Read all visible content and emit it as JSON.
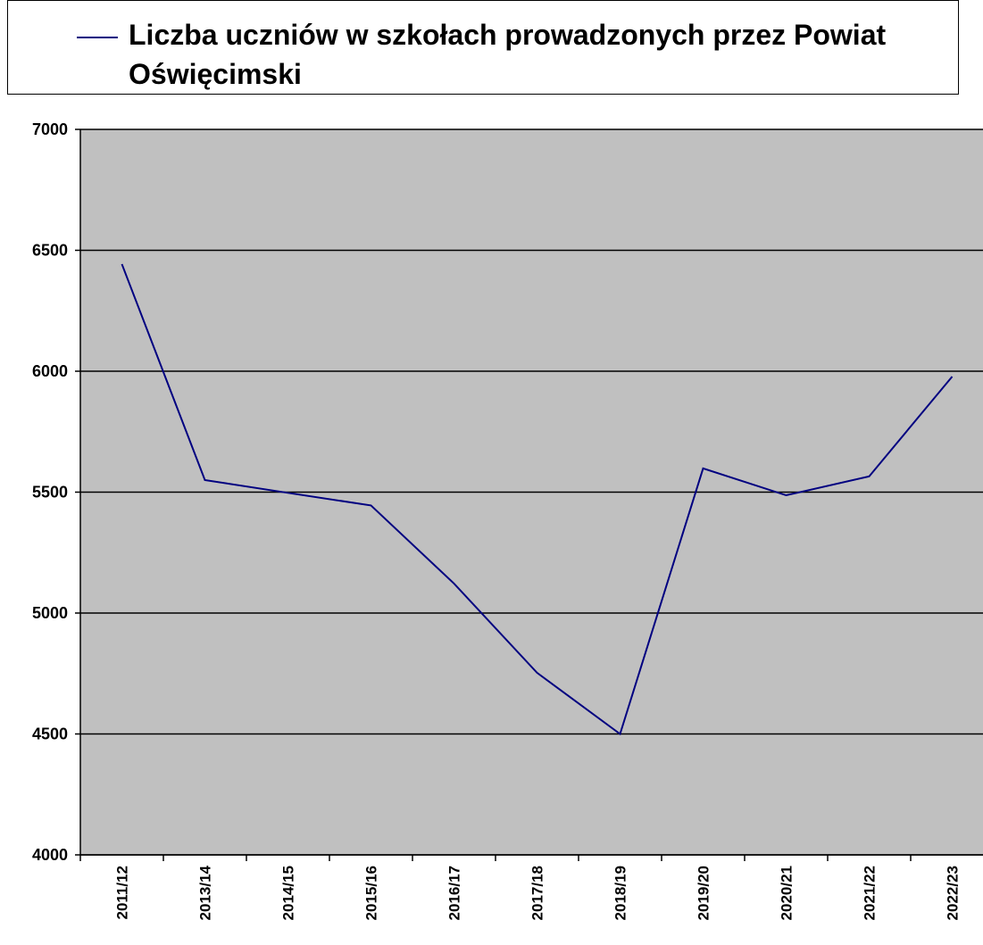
{
  "chart_data": {
    "type": "line",
    "categories": [
      "2011/12",
      "2013/14",
      "2014/15",
      "2015/16",
      "2016/17",
      "2017/18",
      "2018/19",
      "2019/20",
      "2020/21",
      "2021/22",
      "2022/23"
    ],
    "series": [
      {
        "name": "Liczba uczniów w szkołach prowadzonych przez Powiat Oświęcimski",
        "color": "#000080",
        "values": [
          6443,
          5550,
          5497,
          5445,
          5122,
          4753,
          4500,
          5598,
          5487,
          5565,
          5978
        ]
      }
    ],
    "ylim": [
      4000,
      7000
    ],
    "yticks": [
      4000,
      4500,
      5000,
      5500,
      6000,
      6500,
      7000
    ],
    "grid": true,
    "plot_background": "#c0c0c0"
  }
}
